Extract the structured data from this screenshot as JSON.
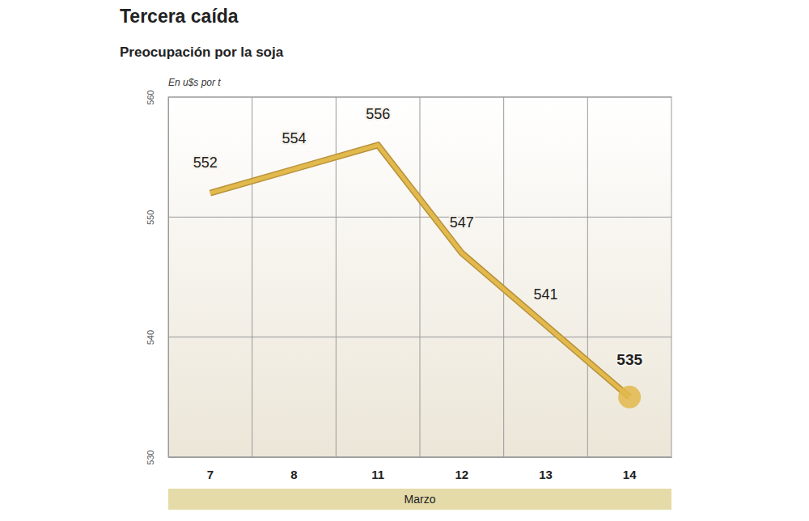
{
  "chart_data": {
    "type": "line",
    "title": "Tercera caída",
    "subtitle": "Preocupación por la soja",
    "ylabel": "En u$s por t",
    "xlabel": "Marzo",
    "categories": [
      "7",
      "8",
      "11",
      "12",
      "13",
      "14"
    ],
    "values": [
      552,
      554,
      556,
      547,
      541,
      535
    ],
    "color": "#e2b94c",
    "ylim": [
      530,
      560
    ],
    "yticks": [
      530,
      540,
      550,
      560
    ],
    "grid": true,
    "data_labels": true
  }
}
